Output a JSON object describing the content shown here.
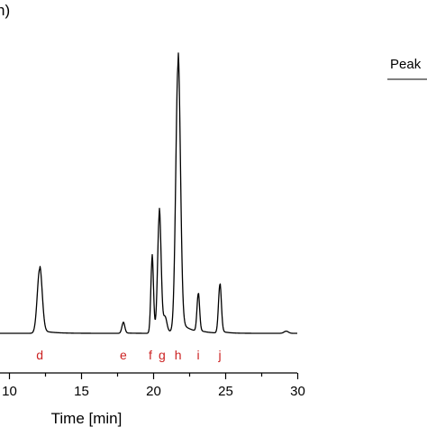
{
  "chart_data": {
    "type": "line",
    "corner_text": "n)",
    "xlabel": "Time [min]",
    "xlim": [
      8.5,
      30
    ],
    "ylim": [
      0,
      100
    ],
    "x_ticks": [
      10,
      15,
      20,
      25,
      30
    ],
    "x_tick_labels": [
      "10",
      "15",
      "20",
      "25",
      "30"
    ],
    "baseline": 0,
    "peaks": [
      {
        "label": "d",
        "x": 12.1,
        "height": 24,
        "width": 0.17
      },
      {
        "label": "e",
        "x": 17.9,
        "height": 4,
        "width": 0.1
      },
      {
        "label": "f",
        "x": 19.9,
        "height": 28,
        "width": 0.09
      },
      {
        "label": "g",
        "x": 20.4,
        "height": 44,
        "width": 0.12
      },
      {
        "label": "h",
        "x": 21.7,
        "height": 100,
        "width": 0.16
      },
      {
        "label": "i",
        "x": 23.1,
        "height": 14,
        "width": 0.09
      },
      {
        "label": "j",
        "x": 24.6,
        "height": 18,
        "width": 0.1
      }
    ],
    "peak_label_color": "#cc2222",
    "line_color": "#000000",
    "table_header": "Peak"
  }
}
